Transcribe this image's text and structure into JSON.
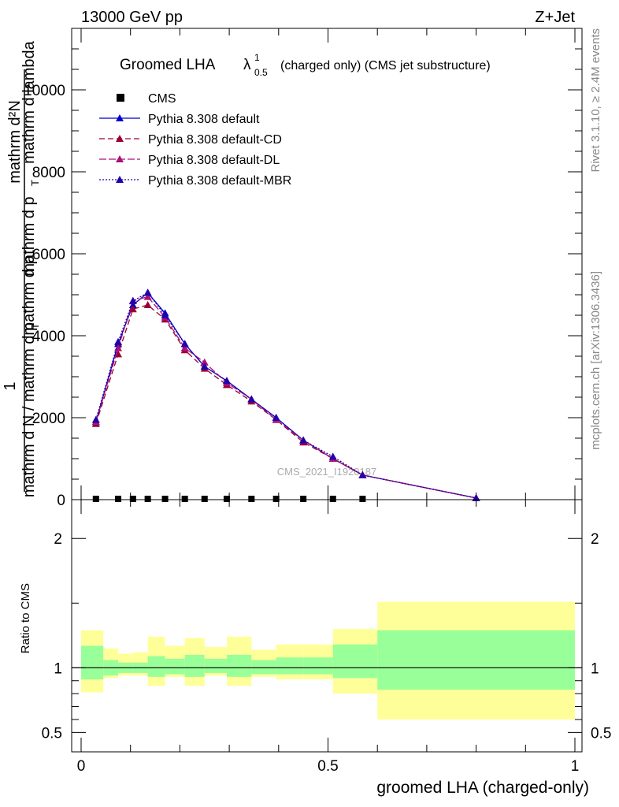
{
  "header": {
    "energy_label": "13000 GeV pp",
    "process_label": "Z+Jet",
    "right_note_top": "Rivet 3.1.10, ≥ 2.4M events",
    "right_note_bottom": "mcplots.cern.ch [arXiv:1306.3436]",
    "watermark": "CMS_2021_I1920187"
  },
  "chart_data": [
    {
      "type": "line",
      "title_main": "Groomed LHA",
      "title_lambda": "λ",
      "title_sup": "1",
      "title_sub": "0.5",
      "title_rest": "(charged only) (CMS jet substructure)",
      "ylabel_upper": "mathrm d²N",
      "ylabel_upper_mid": "mathrm d p",
      "ylabel_upper_mid_sub": "T",
      "ylabel_upper_tail": "mathrm d lambda",
      "ylabel_lower_num": "1",
      "ylabel_lower_den": "mathrm d N / mathrm d p",
      "ylabel_lower_den_sub": "T",
      "ylabel_lower_den_tail": "mathrm d p",
      "xlim": [
        0,
        1
      ],
      "ylim": [
        0,
        11500
      ],
      "yticks": [
        {
          "value": 0,
          "label": "0"
        },
        {
          "value": 2000,
          "label": "2000"
        },
        {
          "value": 4000,
          "label": "4000"
        },
        {
          "value": 6000,
          "label": "6000"
        },
        {
          "value": 8000,
          "label": "8000"
        },
        {
          "value": 10000,
          "label": "10000"
        }
      ],
      "data": {
        "name": "CMS",
        "x": [
          0.03,
          0.075,
          0.105,
          0.135,
          0.17,
          0.21,
          0.25,
          0.295,
          0.345,
          0.395,
          0.45,
          0.51,
          0.57
        ],
        "y": [
          0,
          0,
          0,
          0,
          0,
          0,
          0,
          0,
          0,
          0,
          0,
          0,
          0
        ],
        "color": "#000000"
      },
      "series": [
        {
          "name": "Pythia 8.308 default",
          "color": "#0000cc",
          "dash": "",
          "x": [
            0.03,
            0.075,
            0.105,
            0.135,
            0.17,
            0.21,
            0.25,
            0.295,
            0.345,
            0.395,
            0.45,
            0.51,
            0.57,
            0.8
          ],
          "y": [
            1900,
            3800,
            4750,
            5050,
            4550,
            3800,
            3250,
            2900,
            2450,
            2000,
            1450,
            1000,
            600,
            40
          ]
        },
        {
          "name": "Pythia 8.308 default-CD",
          "color": "#990033",
          "dash": "7,4",
          "x": [
            0.03,
            0.075,
            0.105,
            0.135,
            0.17,
            0.21,
            0.25,
            0.295,
            0.345,
            0.395,
            0.45,
            0.51,
            0.57,
            0.8
          ],
          "y": [
            1850,
            3550,
            4650,
            4750,
            4400,
            3650,
            3200,
            2800,
            2400,
            1950,
            1400,
            1000,
            600,
            40
          ]
        },
        {
          "name": "Pythia 8.308 default-DL",
          "color": "#aa1177",
          "dash": "9,3",
          "x": [
            0.03,
            0.075,
            0.105,
            0.135,
            0.17,
            0.21,
            0.25,
            0.295,
            0.345,
            0.395,
            0.45,
            0.51,
            0.57,
            0.8
          ],
          "y": [
            1900,
            3700,
            4850,
            4950,
            4450,
            3700,
            3350,
            2850,
            2450,
            1950,
            1450,
            1000,
            600,
            40
          ]
        },
        {
          "name": "Pythia 8.308 default-MBR",
          "color": "#2200aa",
          "dash": "2,2",
          "x": [
            0.03,
            0.075,
            0.105,
            0.135,
            0.17,
            0.21,
            0.25,
            0.295,
            0.345,
            0.395,
            0.45,
            0.51,
            0.57,
            0.8
          ],
          "y": [
            1950,
            3850,
            4850,
            5050,
            4500,
            3800,
            3250,
            2900,
            2450,
            2000,
            1450,
            1050,
            600,
            40
          ]
        }
      ],
      "legend_data_label": "CMS",
      "legend_position": "top-left"
    },
    {
      "type": "area",
      "ylabel": "Ratio to CMS",
      "xlabel": "groomed LHA (charged-only)",
      "xlim": [
        0,
        1
      ],
      "ylim": [
        0.35,
        2.3
      ],
      "xticks": [
        {
          "value": 0,
          "label": "0"
        },
        {
          "value": 0.5,
          "label": "0.5"
        },
        {
          "value": 1,
          "label": "1"
        }
      ],
      "yticks": [
        {
          "value": 0.5,
          "label": "0.5"
        },
        {
          "value": 1,
          "label": "1"
        },
        {
          "value": 2,
          "label": "2"
        }
      ],
      "reference_line": 1,
      "bands": [
        {
          "x0": 0.0,
          "x1": 0.045,
          "inner": [
            0.91,
            1.17
          ],
          "outer": [
            0.81,
            1.29
          ]
        },
        {
          "x0": 0.045,
          "x1": 0.075,
          "inner": [
            0.94,
            1.06
          ],
          "outer": [
            0.92,
            1.15
          ]
        },
        {
          "x0": 0.075,
          "x1": 0.105,
          "inner": [
            0.96,
            1.04
          ],
          "outer": [
            0.94,
            1.11
          ]
        },
        {
          "x0": 0.105,
          "x1": 0.135,
          "inner": [
            0.96,
            1.04
          ],
          "outer": [
            0.94,
            1.12
          ]
        },
        {
          "x0": 0.135,
          "x1": 0.17,
          "inner": [
            0.93,
            1.09
          ],
          "outer": [
            0.86,
            1.24
          ]
        },
        {
          "x0": 0.17,
          "x1": 0.21,
          "inner": [
            0.95,
            1.07
          ],
          "outer": [
            0.93,
            1.17
          ]
        },
        {
          "x0": 0.21,
          "x1": 0.25,
          "inner": [
            0.93,
            1.1
          ],
          "outer": [
            0.86,
            1.23
          ]
        },
        {
          "x0": 0.25,
          "x1": 0.295,
          "inner": [
            0.96,
            1.07
          ],
          "outer": [
            0.94,
            1.16
          ]
        },
        {
          "x0": 0.295,
          "x1": 0.345,
          "inner": [
            0.93,
            1.1
          ],
          "outer": [
            0.86,
            1.24
          ]
        },
        {
          "x0": 0.345,
          "x1": 0.395,
          "inner": [
            0.95,
            1.06
          ],
          "outer": [
            0.93,
            1.14
          ]
        },
        {
          "x0": 0.395,
          "x1": 0.45,
          "inner": [
            0.95,
            1.08
          ],
          "outer": [
            0.91,
            1.18
          ]
        },
        {
          "x0": 0.45,
          "x1": 0.51,
          "inner": [
            0.95,
            1.08
          ],
          "outer": [
            0.91,
            1.18
          ]
        },
        {
          "x0": 0.51,
          "x1": 0.6,
          "inner": [
            0.92,
            1.18
          ],
          "outer": [
            0.8,
            1.3
          ]
        },
        {
          "x0": 0.6,
          "x1": 1.0,
          "inner": [
            0.83,
            1.29
          ],
          "outer": [
            0.6,
            1.51
          ]
        }
      ],
      "colors": {
        "inner": "#99ff99",
        "outer": "#ffff99"
      }
    }
  ]
}
